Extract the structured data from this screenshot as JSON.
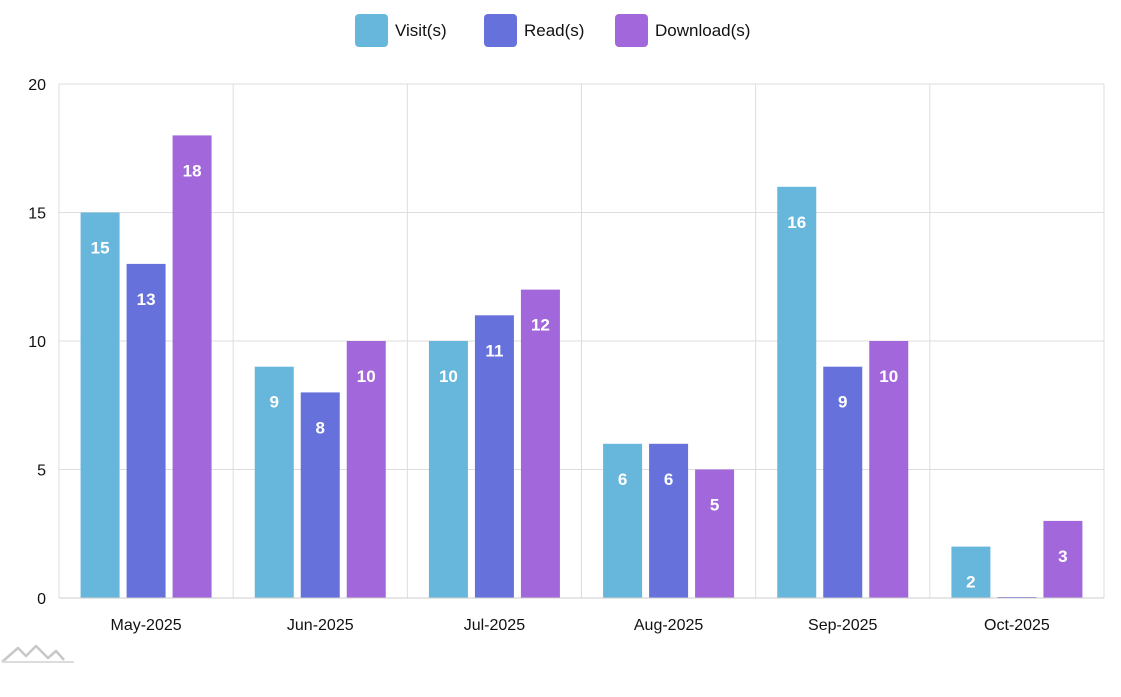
{
  "chart_data": {
    "type": "bar",
    "title": "",
    "xlabel": "",
    "ylabel": "",
    "ylim": [
      0,
      20
    ],
    "yticks": [
      0,
      5,
      10,
      15,
      20
    ],
    "categories": [
      "May-2025",
      "Jun-2025",
      "Jul-2025",
      "Aug-2025",
      "Sep-2025",
      "Oct-2025"
    ],
    "series": [
      {
        "name": "Visit(s)",
        "color": "#67b7dc",
        "values": [
          15,
          9,
          10,
          6,
          16,
          2
        ]
      },
      {
        "name": "Read(s)",
        "color": "#6771dc",
        "values": [
          13,
          8,
          11,
          6,
          9,
          0
        ]
      },
      {
        "name": "Download(s)",
        "color": "#a367dc",
        "values": [
          18,
          10,
          12,
          5,
          10,
          3
        ]
      }
    ],
    "legend_position": "top-center",
    "grid": true,
    "data_labels": true
  },
  "watermark_icon": "chart-logo-icon"
}
